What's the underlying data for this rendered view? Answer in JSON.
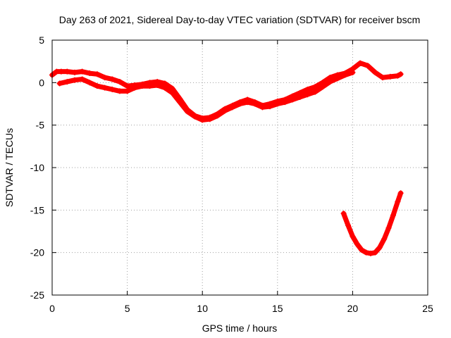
{
  "chart_data": {
    "type": "line",
    "title": "Day 263 of 2021, Sidereal Day-to-day VTEC variation (SDTVAR) for receiver bscm",
    "xlabel": "GPS time / hours",
    "ylabel": "SDTVAR / TECUs",
    "xlim": [
      0,
      25
    ],
    "ylim": [
      -25,
      5
    ],
    "x_ticks": [
      0,
      5,
      10,
      15,
      20,
      25
    ],
    "y_ticks": [
      5,
      0,
      -5,
      -10,
      -15,
      -20,
      -25
    ],
    "x_tick_labels": [
      "0",
      "5",
      "10",
      "15",
      "20",
      "25"
    ],
    "y_tick_labels": [
      "5",
      "0",
      "-5",
      "-10",
      "-15",
      "-20",
      "-25"
    ],
    "grid": true,
    "legend": "none",
    "series_color": "#ff0000",
    "series": [
      {
        "name": "track-a",
        "x": [
          0.0,
          0.3,
          0.6,
          1.0,
          1.5,
          2.0,
          2.5,
          3.0,
          3.5,
          4.0,
          4.5,
          5.0,
          5.5,
          6.0,
          6.5,
          7.0,
          7.5,
          8.0,
          8.5,
          9.0,
          9.5,
          10.0,
          10.5,
          11.0,
          11.5,
          12.0,
          12.5,
          13.0,
          13.5,
          14.0,
          14.5,
          15.0,
          15.5,
          16.0,
          16.5,
          17.0,
          17.5,
          18.0,
          18.5,
          19.0,
          19.5,
          20.0,
          20.5,
          21.0,
          21.5,
          22.0,
          22.5,
          23.0,
          23.2
        ],
        "y": [
          0.9,
          1.3,
          1.3,
          1.3,
          1.2,
          1.3,
          1.1,
          1.0,
          0.6,
          0.4,
          0.1,
          -0.4,
          -0.3,
          -0.2,
          0.0,
          0.1,
          -0.1,
          -0.7,
          -1.9,
          -3.2,
          -3.9,
          -4.2,
          -4.1,
          -3.7,
          -3.1,
          -2.7,
          -2.3,
          -2.0,
          -2.3,
          -2.7,
          -2.5,
          -2.2,
          -2.0,
          -1.6,
          -1.2,
          -0.8,
          -0.5,
          0.0,
          0.6,
          0.9,
          1.1,
          1.6,
          2.3,
          2.0,
          1.2,
          0.6,
          0.7,
          0.8,
          1.0
        ]
      },
      {
        "name": "track-b",
        "x": [
          0.5,
          1.0,
          1.5,
          2.0,
          2.5,
          3.0,
          3.5,
          4.0,
          4.5,
          5.0,
          5.5,
          6.0,
          6.5,
          7.0,
          7.5,
          8.0,
          8.5,
          9.0,
          9.5,
          10.0,
          10.5,
          11.0,
          11.5,
          12.0,
          12.5,
          13.0,
          13.5,
          14.0,
          14.5,
          15.0,
          15.5,
          16.0,
          16.5,
          17.0,
          17.5,
          18.0,
          18.5,
          19.0,
          19.5,
          20.0
        ],
        "y": [
          -0.1,
          0.1,
          0.3,
          0.4,
          0.0,
          -0.4,
          -0.6,
          -0.8,
          -1.0,
          -1.0,
          -0.6,
          -0.4,
          -0.4,
          -0.3,
          -0.6,
          -1.2,
          -2.3,
          -3.4,
          -4.0,
          -4.4,
          -4.3,
          -3.9,
          -3.3,
          -2.9,
          -2.5,
          -2.3,
          -2.5,
          -2.9,
          -2.8,
          -2.5,
          -2.3,
          -2.0,
          -1.7,
          -1.4,
          -1.1,
          -0.5,
          0.1,
          0.5,
          0.9,
          1.2
        ]
      },
      {
        "name": "track-c",
        "x": [
          19.4,
          19.7,
          20.0,
          20.3,
          20.6,
          20.9,
          21.2,
          21.5,
          21.8,
          22.1,
          22.4,
          22.7,
          23.0,
          23.2
        ],
        "y": [
          -15.4,
          -16.8,
          -18.1,
          -19.0,
          -19.7,
          -20.0,
          -20.1,
          -20.0,
          -19.4,
          -18.4,
          -17.1,
          -15.6,
          -14.0,
          -13.0
        ]
      }
    ]
  }
}
